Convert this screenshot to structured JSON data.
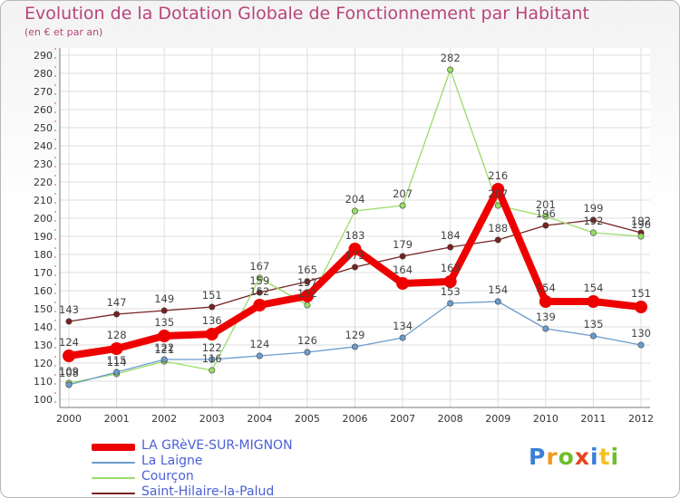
{
  "title": "Evolution de la Dotation Globale de Fonctionnement par Habitant",
  "subtitle": "(en € et par an)",
  "logo": "Proxiti",
  "chart_data": {
    "type": "line",
    "title": "Evolution de la Dotation Globale de Fonctionnement par Habitant",
    "subtitle": "(en € et par an)",
    "xlabel": "",
    "ylabel": "",
    "ylim": [
      100,
      290
    ],
    "ytick_step": 10,
    "grid": true,
    "legend_position": "bottom-left",
    "x": [
      "2000",
      "2001",
      "2002",
      "2003",
      "2004",
      "2005",
      "2006",
      "2007",
      "2008",
      "2009",
      "2010",
      "2011",
      "2012"
    ],
    "series": [
      {
        "name": "LA GRèVE-SUR-MIGNON",
        "color": "#ee0000",
        "values": [
          124,
          128,
          135,
          136,
          152,
          157,
          183,
          164,
          165,
          216,
          154,
          154,
          151
        ]
      },
      {
        "name": "La Laigne",
        "color": "#6b9ccd",
        "values": [
          108,
          115,
          122,
          122,
          124,
          126,
          129,
          134,
          153,
          154,
          139,
          135,
          130
        ]
      },
      {
        "name": "Courçon",
        "color": "#99dd66",
        "values": [
          109,
          114,
          121,
          116,
          167,
          152,
          204,
          207,
          282,
          207,
          201,
          192,
          190
        ]
      },
      {
        "name": "Saint-Hilaire-la-Palud",
        "color": "#772222",
        "values": [
          143,
          147,
          149,
          151,
          159,
          165,
          173,
          179,
          184,
          188,
          196,
          199,
          192
        ]
      }
    ]
  }
}
